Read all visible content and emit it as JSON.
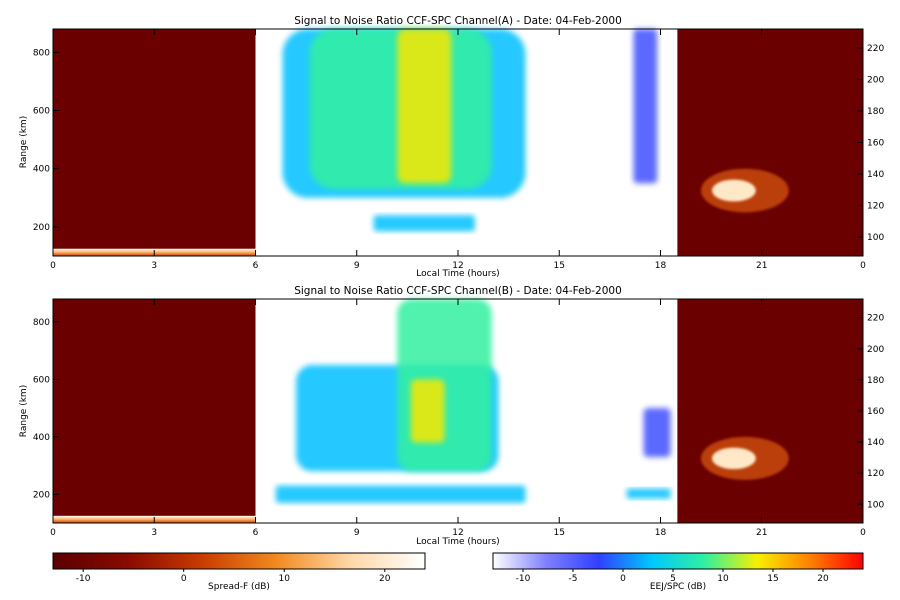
{
  "chart_data": [
    {
      "type": "heatmap",
      "title": "Signal to Noise Ratio CCF-SPC Channel(A) - Date: 04-Feb-2000",
      "xlabel": "Local Time (hours)",
      "ylabel": "Range (km)",
      "xlim": [
        0,
        24
      ],
      "ylim": [
        100,
        880
      ],
      "y2lim": [
        88,
        232
      ],
      "xticks": [
        "0",
        "3",
        "6",
        "9",
        "12",
        "15",
        "18",
        "21",
        "0"
      ],
      "yticks": [
        "200",
        "400",
        "600",
        "800"
      ],
      "y2ticks": [
        "100",
        "120",
        "140",
        "160",
        "180",
        "200",
        "220"
      ],
      "spread_f_blocks": [
        [
          0,
          6
        ],
        [
          18.5,
          24
        ]
      ],
      "spread_f_features": [
        {
          "x0": 0,
          "x1": 6,
          "y0": 100,
          "y1": 125,
          "kind": "baseline"
        },
        {
          "x0": 19.2,
          "x1": 21.8,
          "y0": 250,
          "y1": 400,
          "kind": "plume"
        }
      ],
      "eej_features": [
        {
          "x0": 6.8,
          "x1": 14.0,
          "y0": 300,
          "y1": 880,
          "intensity": 0.45
        },
        {
          "x0": 7.6,
          "x1": 13.0,
          "y0": 330,
          "y1": 880,
          "intensity": 0.7
        },
        {
          "x0": 10.2,
          "x1": 11.8,
          "y0": 350,
          "y1": 880,
          "intensity": 0.95
        },
        {
          "x0": 9.5,
          "x1": 12.5,
          "y0": 185,
          "y1": 240,
          "intensity": 0.6
        },
        {
          "x0": 17.2,
          "x1": 17.9,
          "y0": 350,
          "y1": 880,
          "intensity": 0.3
        }
      ]
    },
    {
      "type": "heatmap",
      "title": "Signal to Noise Ratio CCF-SPC Channel(B) - Date: 04-Feb-2000",
      "xlabel": "Local Time (hours)",
      "ylabel": "Range (km)",
      "xlim": [
        0,
        24
      ],
      "ylim": [
        100,
        880
      ],
      "y2lim": [
        88,
        232
      ],
      "xticks": [
        "0",
        "3",
        "6",
        "9",
        "12",
        "15",
        "18",
        "21",
        "0"
      ],
      "yticks": [
        "200",
        "400",
        "600",
        "800"
      ],
      "y2ticks": [
        "100",
        "120",
        "140",
        "160",
        "180",
        "200",
        "220"
      ],
      "spread_f_blocks": [
        [
          0,
          6
        ],
        [
          18.5,
          24
        ]
      ],
      "spread_f_features": [
        {
          "x0": 0,
          "x1": 6,
          "y0": 100,
          "y1": 125,
          "kind": "baseline"
        },
        {
          "x0": 19.2,
          "x1": 21.8,
          "y0": 250,
          "y1": 400,
          "kind": "plume"
        }
      ],
      "eej_features": [
        {
          "x0": 7.2,
          "x1": 13.2,
          "y0": 280,
          "y1": 650,
          "intensity": 0.5
        },
        {
          "x0": 10.2,
          "x1": 13.0,
          "y0": 280,
          "y1": 880,
          "intensity": 0.75
        },
        {
          "x0": 10.6,
          "x1": 11.6,
          "y0": 380,
          "y1": 600,
          "intensity": 0.9
        },
        {
          "x0": 6.6,
          "x1": 14.0,
          "y0": 170,
          "y1": 230,
          "intensity": 0.55
        },
        {
          "x0": 17.5,
          "x1": 18.3,
          "y0": 330,
          "y1": 500,
          "intensity": 0.3
        },
        {
          "x0": 17.0,
          "x1": 18.3,
          "y0": 185,
          "y1": 220,
          "intensity": 0.45
        }
      ]
    }
  ],
  "colorbars": [
    {
      "label": "Spread-F (dB)",
      "range": [
        -13,
        24
      ],
      "ticks": [
        "-10",
        "0",
        "10",
        "20"
      ],
      "colors": [
        "#5a0000",
        "#8a0a00",
        "#c83c00",
        "#f28a20",
        "#ffd8a8",
        "#ffffff"
      ]
    },
    {
      "label": "EEJ/SPC (dB)",
      "range": [
        -13,
        24
      ],
      "ticks": [
        "-10",
        "-5",
        "0",
        "5",
        "10",
        "15",
        "20"
      ],
      "colors": [
        "#ffffff",
        "#8080ff",
        "#3040ff",
        "#00c8ff",
        "#30f0a0",
        "#f8f000",
        "#ff8000",
        "#ff0000"
      ]
    }
  ]
}
